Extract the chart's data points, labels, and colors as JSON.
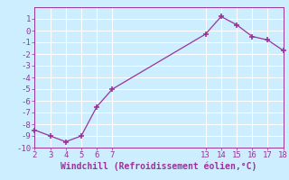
{
  "x": [
    2,
    3,
    4,
    5,
    6,
    7,
    13,
    14,
    15,
    16,
    17,
    18
  ],
  "y": [
    -8.5,
    -9.0,
    -9.5,
    -9.0,
    -6.5,
    -5.0,
    -0.3,
    1.2,
    0.5,
    -0.5,
    -0.8,
    -1.7
  ],
  "line_color": "#993399",
  "marker": "+",
  "marker_size": 4,
  "marker_linewidth": 1.2,
  "bg_color": "#cceeff",
  "grid_color": "#ffffff",
  "xlabel": "Windchill (Refroidissement éolien,°C)",
  "tick_color": "#993399",
  "label_color": "#993399",
  "xlim": [
    2,
    18
  ],
  "ylim": [
    -10,
    2
  ],
  "xticks": [
    2,
    3,
    4,
    5,
    6,
    7,
    13,
    14,
    15,
    16,
    17,
    18
  ],
  "yticks": [
    -10,
    -9,
    -8,
    -7,
    -6,
    -5,
    -4,
    -3,
    -2,
    -1,
    0,
    1
  ],
  "tick_fontsize": 6.5,
  "xlabel_fontsize": 7.0
}
